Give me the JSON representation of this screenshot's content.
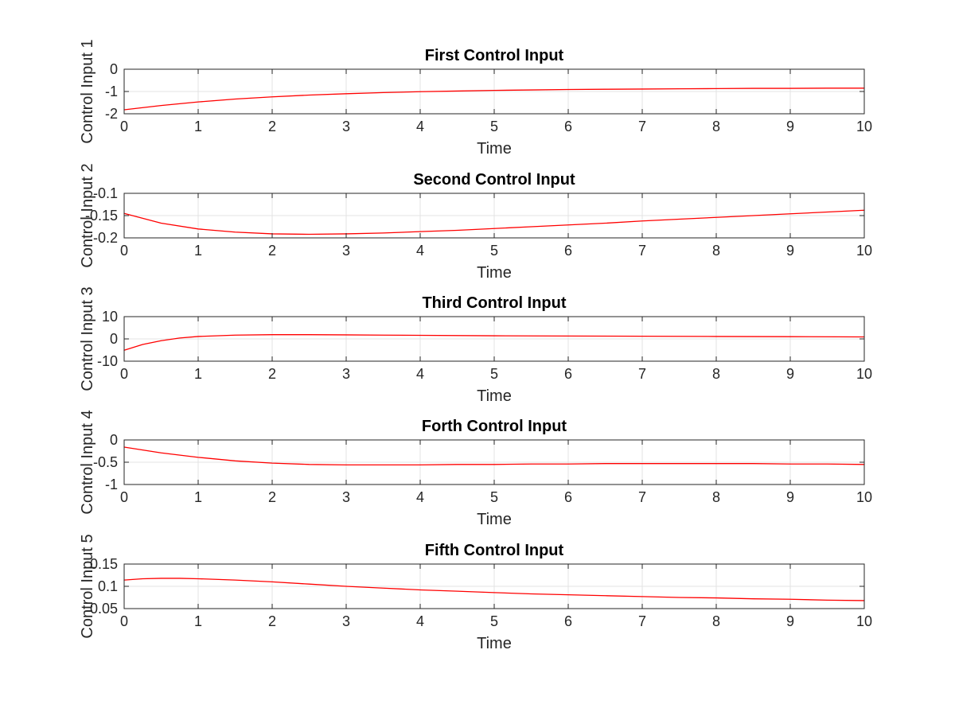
{
  "chart_data": [
    {
      "type": "line",
      "title": "First Control Input",
      "xlabel": "Time",
      "ylabel": "Control Input 1",
      "xlim": [
        0,
        10
      ],
      "ylim": [
        -2,
        0
      ],
      "xticks": [
        "0",
        "1",
        "2",
        "3",
        "4",
        "5",
        "6",
        "7",
        "8",
        "9",
        "10"
      ],
      "yticks": [
        {
          "value": 0,
          "label": "0"
        },
        {
          "value": -1,
          "label": "-1"
        },
        {
          "value": -2,
          "label": "-2"
        }
      ],
      "grid": true,
      "series": [
        {
          "color": "#ff0000",
          "x": [
            0,
            0.5,
            1,
            1.5,
            2,
            2.5,
            3,
            3.5,
            4,
            4.5,
            5,
            5.5,
            6,
            6.5,
            7,
            7.5,
            8,
            8.5,
            9,
            9.5,
            10
          ],
          "y": [
            -1.82,
            -1.63,
            -1.47,
            -1.34,
            -1.24,
            -1.16,
            -1.1,
            -1.05,
            -1.01,
            -0.98,
            -0.95,
            -0.93,
            -0.91,
            -0.9,
            -0.89,
            -0.88,
            -0.87,
            -0.86,
            -0.86,
            -0.85,
            -0.85
          ]
        }
      ]
    },
    {
      "type": "line",
      "title": "Second Control Input",
      "xlabel": "Time",
      "ylabel": "Control Input 2",
      "xlim": [
        0,
        10
      ],
      "ylim": [
        -0.2,
        -0.1
      ],
      "xticks": [
        "0",
        "1",
        "2",
        "3",
        "4",
        "5",
        "6",
        "7",
        "8",
        "9",
        "10"
      ],
      "yticks": [
        {
          "value": -0.1,
          "label": "-0.1"
        },
        {
          "value": -0.15,
          "label": "-0.15"
        },
        {
          "value": -0.2,
          "label": "-0.2"
        }
      ],
      "grid": true,
      "series": [
        {
          "color": "#ff0000",
          "x": [
            0,
            0.5,
            1,
            1.5,
            2,
            2.5,
            3,
            3.5,
            4,
            4.5,
            5,
            5.5,
            6,
            6.5,
            7,
            7.5,
            8,
            8.5,
            9,
            9.5,
            10
          ],
          "y": [
            -0.145,
            -0.167,
            -0.18,
            -0.187,
            -0.191,
            -0.192,
            -0.191,
            -0.189,
            -0.186,
            -0.183,
            -0.179,
            -0.175,
            -0.171,
            -0.167,
            -0.162,
            -0.158,
            -0.154,
            -0.15,
            -0.146,
            -0.142,
            -0.138
          ]
        }
      ]
    },
    {
      "type": "line",
      "title": "Third Control Input",
      "xlabel": "Time",
      "ylabel": "Control Input 3",
      "xlim": [
        0,
        10
      ],
      "ylim": [
        -10,
        10
      ],
      "xticks": [
        "0",
        "1",
        "2",
        "3",
        "4",
        "5",
        "6",
        "7",
        "8",
        "9",
        "10"
      ],
      "yticks": [
        {
          "value": 10,
          "label": "10"
        },
        {
          "value": 0,
          "label": "0"
        },
        {
          "value": -10,
          "label": "-10"
        }
      ],
      "grid": true,
      "series": [
        {
          "color": "#ff0000",
          "x": [
            0,
            0.25,
            0.5,
            0.75,
            1,
            1.5,
            2,
            2.5,
            3,
            3.5,
            4,
            5,
            6,
            7,
            8,
            9,
            10
          ],
          "y": [
            -5.1,
            -2.5,
            -0.8,
            0.4,
            1.1,
            1.7,
            1.9,
            1.9,
            1.8,
            1.7,
            1.6,
            1.4,
            1.3,
            1.2,
            1.1,
            1.0,
            0.9
          ]
        }
      ]
    },
    {
      "type": "line",
      "title": "Forth Control Input",
      "xlabel": "Time",
      "ylabel": "Control Input 4",
      "xlim": [
        0,
        10
      ],
      "ylim": [
        -1,
        0
      ],
      "xticks": [
        "0",
        "1",
        "2",
        "3",
        "4",
        "5",
        "6",
        "7",
        "8",
        "9",
        "10"
      ],
      "yticks": [
        {
          "value": 0,
          "label": "0"
        },
        {
          "value": -0.5,
          "label": "-0.5"
        },
        {
          "value": -1,
          "label": "-1"
        }
      ],
      "grid": true,
      "series": [
        {
          "color": "#ff0000",
          "x": [
            0,
            0.5,
            1,
            1.5,
            2,
            2.5,
            3,
            3.5,
            4,
            4.5,
            5,
            5.5,
            6,
            6.5,
            7,
            7.5,
            8,
            8.5,
            9,
            9.5,
            10
          ],
          "y": [
            -0.16,
            -0.29,
            -0.39,
            -0.47,
            -0.52,
            -0.55,
            -0.56,
            -0.56,
            -0.56,
            -0.55,
            -0.55,
            -0.54,
            -0.54,
            -0.53,
            -0.53,
            -0.53,
            -0.53,
            -0.53,
            -0.54,
            -0.54,
            -0.55
          ]
        }
      ]
    },
    {
      "type": "line",
      "title": "Fifth Control Input",
      "xlabel": "Time",
      "ylabel": "Control Input 5",
      "xlim": [
        0,
        10
      ],
      "ylim": [
        0.05,
        0.15
      ],
      "xticks": [
        "0",
        "1",
        "2",
        "3",
        "4",
        "5",
        "6",
        "7",
        "8",
        "9",
        "10"
      ],
      "yticks": [
        {
          "value": 0.15,
          "label": "0.15"
        },
        {
          "value": 0.1,
          "label": "0.1"
        },
        {
          "value": 0.05,
          "label": "0.05"
        }
      ],
      "grid": true,
      "series": [
        {
          "color": "#ff0000",
          "x": [
            0,
            0.25,
            0.5,
            0.75,
            1,
            1.5,
            2,
            2.5,
            3,
            3.5,
            4,
            4.5,
            5,
            5.5,
            6,
            6.5,
            7,
            7.5,
            8,
            8.5,
            9,
            9.5,
            10
          ],
          "y": [
            0.114,
            0.117,
            0.118,
            0.118,
            0.117,
            0.114,
            0.11,
            0.105,
            0.1,
            0.096,
            0.092,
            0.089,
            0.086,
            0.083,
            0.081,
            0.079,
            0.077,
            0.075,
            0.074,
            0.072,
            0.071,
            0.069,
            0.068
          ]
        }
      ]
    }
  ]
}
